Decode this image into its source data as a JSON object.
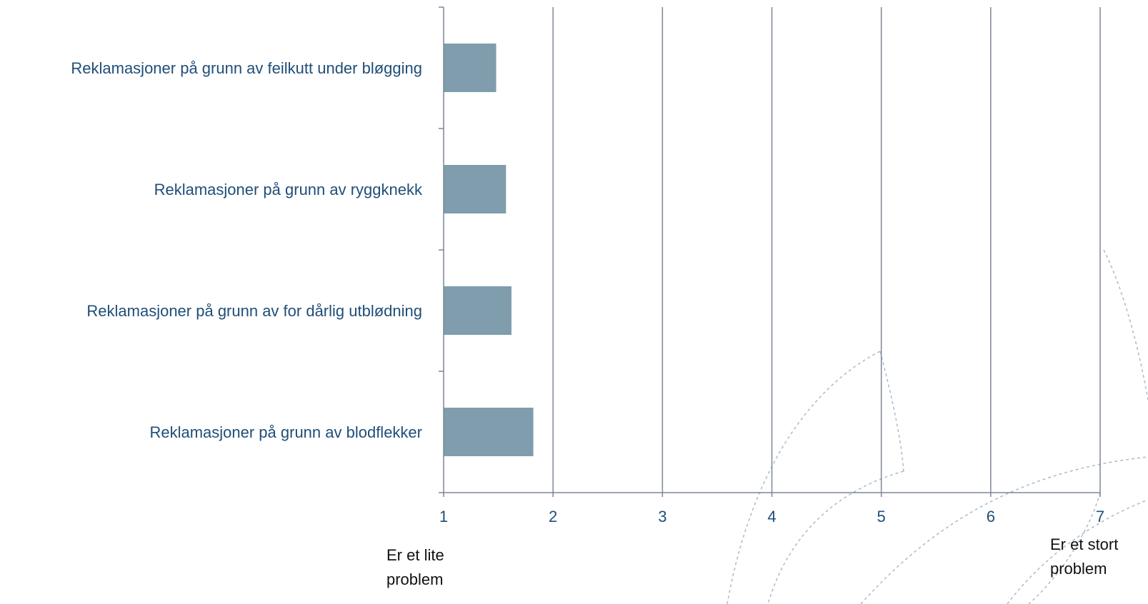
{
  "chart_data": {
    "type": "bar",
    "orientation": "horizontal",
    "categories": [
      "Reklamasjoner på grunn av feilkutt under bløgging",
      "Reklamasjoner på grunn av ryggknekk",
      "Reklamasjoner på grunn av for dårlig utblødning",
      "Reklamasjoner på grunn av blodflekker"
    ],
    "values": [
      1.48,
      1.57,
      1.62,
      1.82
    ],
    "xlim": [
      1,
      7
    ],
    "xticks": [
      "1",
      "2",
      "3",
      "4",
      "5",
      "6",
      "7"
    ],
    "grid": true,
    "legend": "none",
    "title": "",
    "xlabel": "",
    "ylabel": "",
    "annotations": {
      "low_end": [
        "Er et lite",
        "problem"
      ],
      "high_end": [
        "Er et stort",
        "problem"
      ]
    },
    "colors": {
      "bar": "#7f9dac",
      "axis": "#7f8696",
      "grid": "#7f8696",
      "label": "#1f4e79",
      "annotation": "#111111",
      "decoration": "#a9bcc8"
    }
  }
}
